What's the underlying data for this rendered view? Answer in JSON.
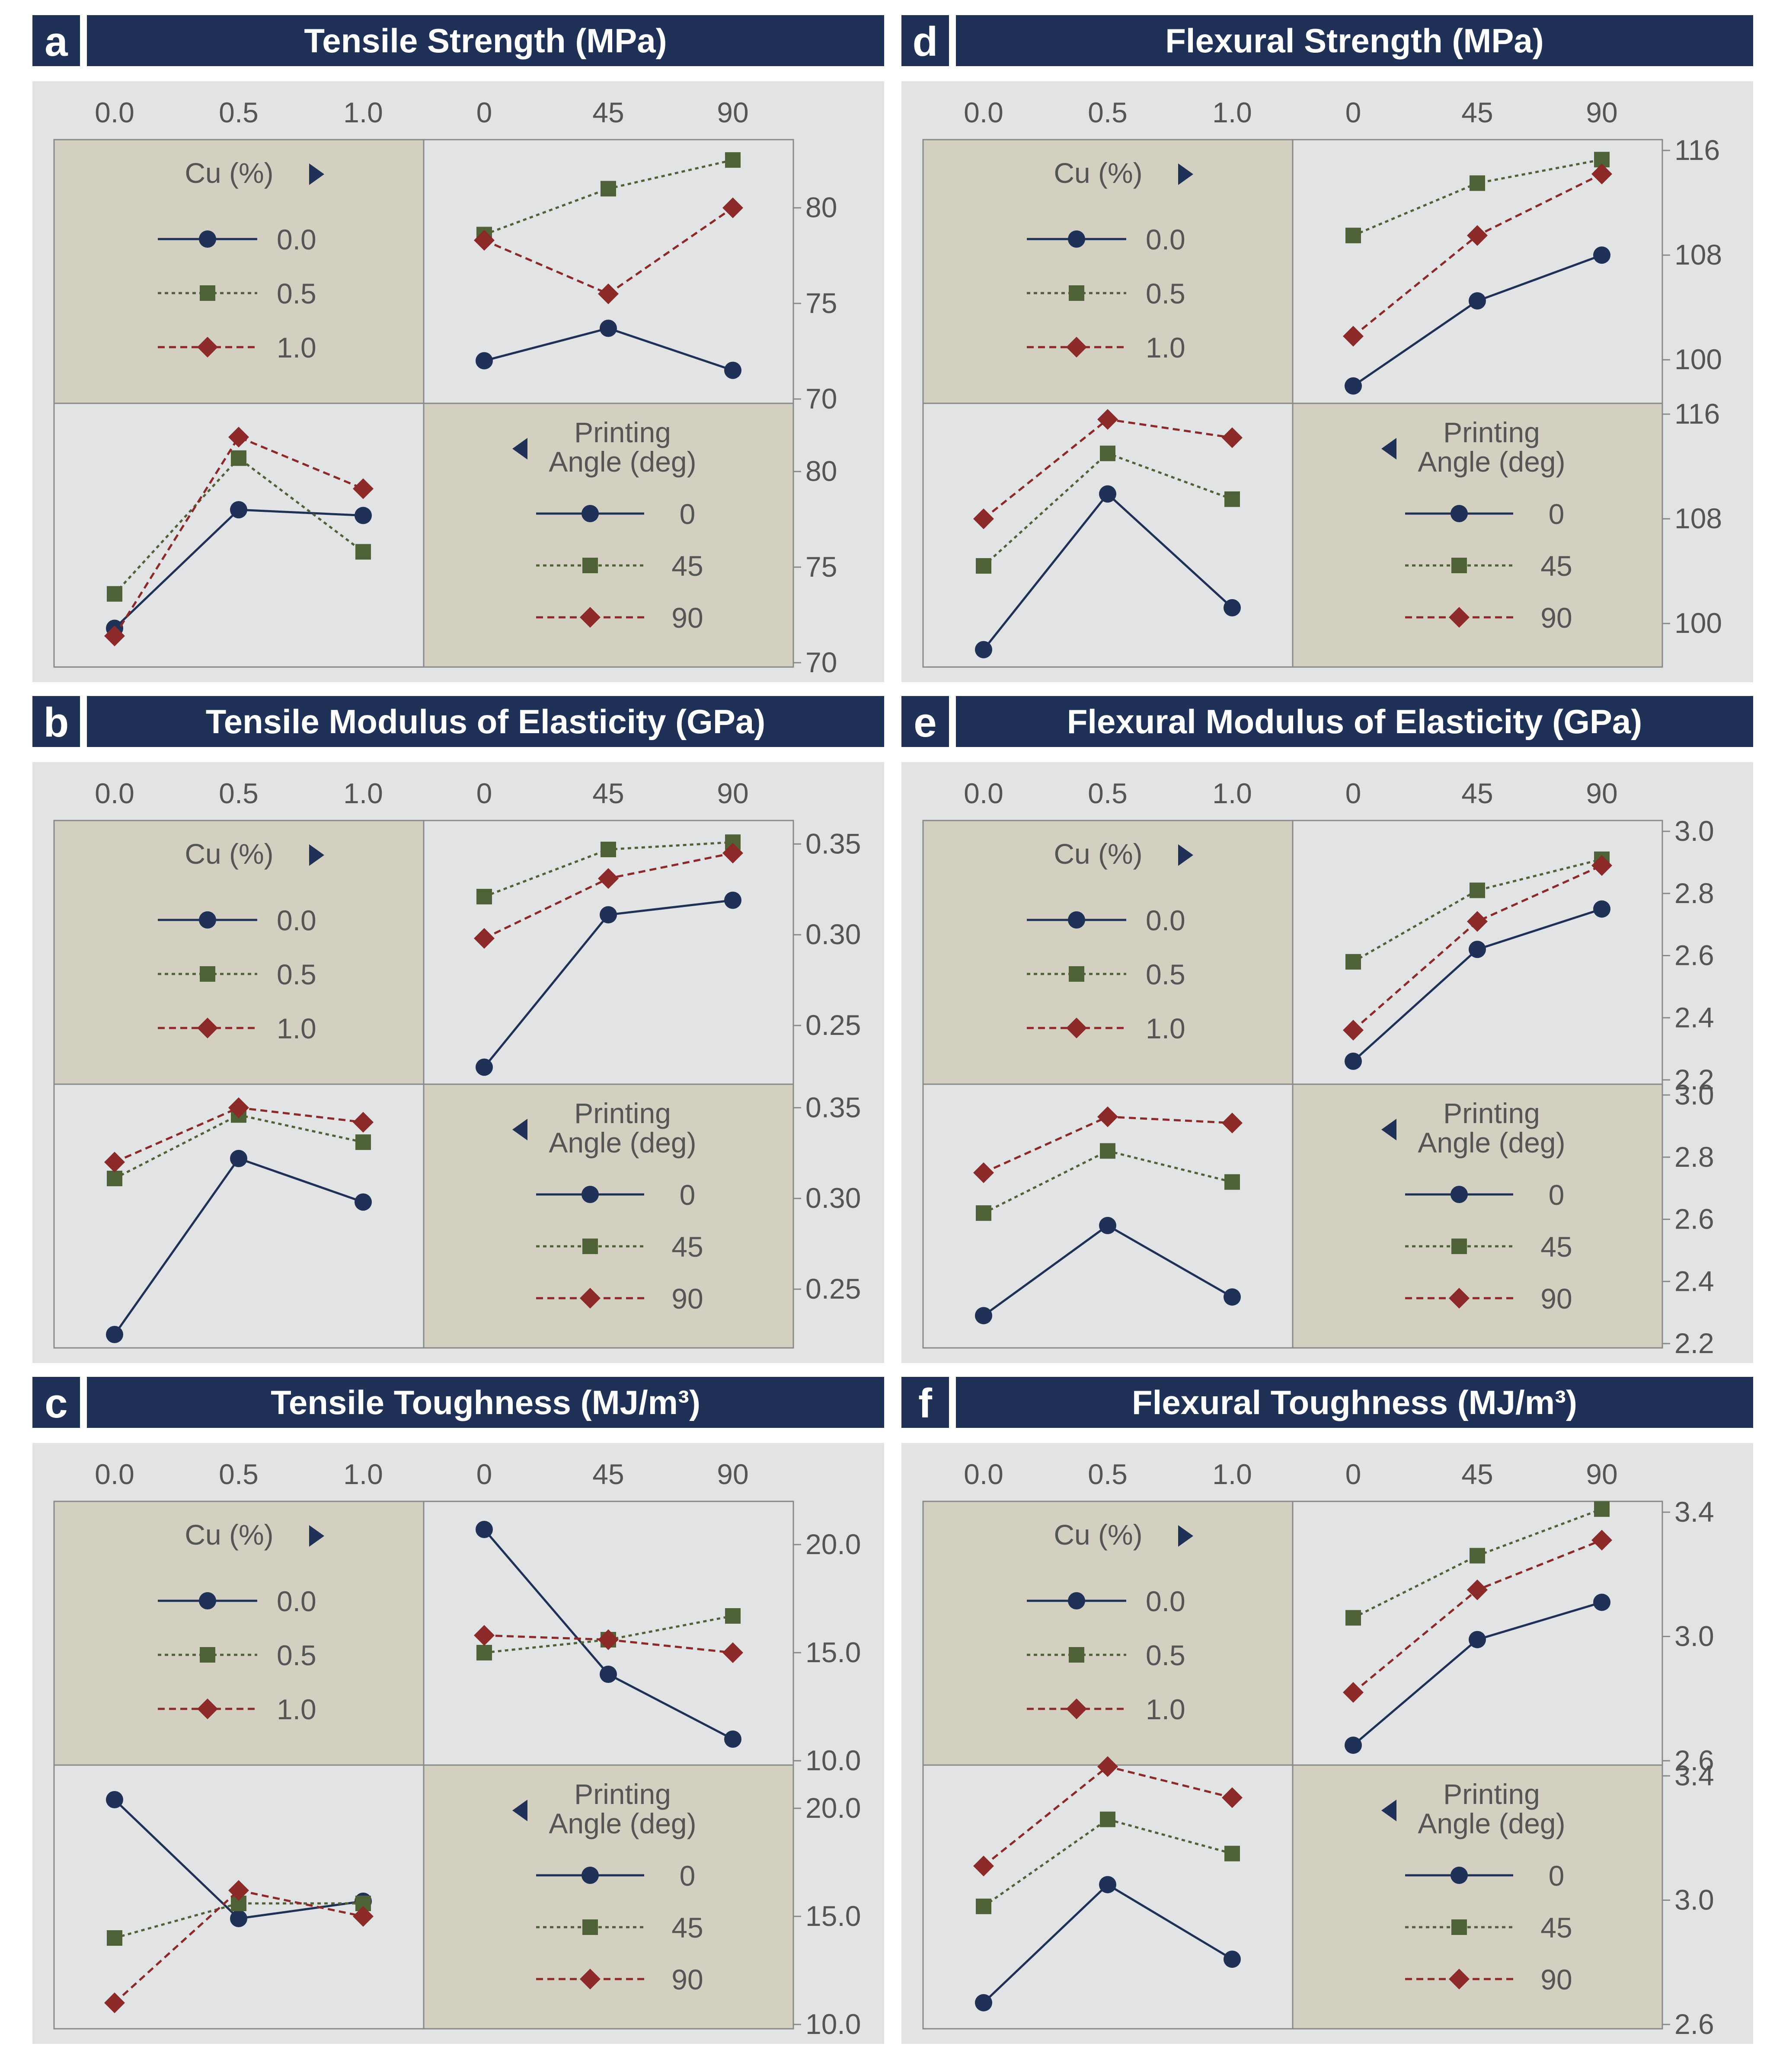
{
  "colors": {
    "title_bar": "#1f3157",
    "panel_bg": "#e2e3e5",
    "legend_bg": "#d3cfc1",
    "series_1": "#1f3157",
    "series_2": "#4f6136",
    "series_3": "#8c2a2a",
    "tick_text": "#555555"
  },
  "legend_cu": {
    "title": "Cu (%)",
    "items": [
      "0.0",
      "0.5",
      "1.0"
    ]
  },
  "legend_angle": {
    "title_line1": "Printing",
    "title_line2": "Angle (deg)",
    "items": [
      "0",
      "45",
      "90"
    ]
  },
  "chart_data": [
    {
      "type": "line",
      "letter": "a",
      "title": "Tensile Strength (MPa)",
      "cu_ticks": [
        "0.0",
        "0.5",
        "1.0"
      ],
      "angle_ticks": [
        "0",
        "45",
        "90"
      ],
      "ylim": [
        70,
        83
      ],
      "yticks": [
        "70",
        "75",
        "80"
      ],
      "cu_series": [
        {
          "name": "0.0",
          "values": [
            72.0,
            73.7,
            71.5
          ]
        },
        {
          "name": "0.5",
          "values": [
            78.6,
            81.0,
            82.5
          ]
        },
        {
          "name": "1.0",
          "values": [
            78.3,
            75.5,
            80.0
          ]
        }
      ],
      "angle_series": [
        {
          "name": "0",
          "values": [
            71.8,
            78.0,
            77.7
          ]
        },
        {
          "name": "45",
          "values": [
            73.6,
            80.7,
            75.8
          ]
        },
        {
          "name": "90",
          "values": [
            71.4,
            81.8,
            79.1
          ]
        }
      ]
    },
    {
      "type": "line",
      "letter": "b",
      "title": "Tensile Modulus of Elasticity (GPa)",
      "cu_ticks": [
        "0.0",
        "0.5",
        "1.0"
      ],
      "angle_ticks": [
        "0",
        "45",
        "90"
      ],
      "ylim": [
        0.22,
        0.357
      ],
      "yticks": [
        "0.25",
        "0.30",
        "0.35"
      ],
      "cu_series": [
        {
          "name": "0.0",
          "values": [
            0.227,
            0.311,
            0.319
          ]
        },
        {
          "name": "0.5",
          "values": [
            0.321,
            0.347,
            0.351
          ]
        },
        {
          "name": "1.0",
          "values": [
            0.298,
            0.331,
            0.345
          ]
        }
      ],
      "angle_series": [
        {
          "name": "0",
          "values": [
            0.225,
            0.322,
            0.298
          ]
        },
        {
          "name": "45",
          "values": [
            0.311,
            0.346,
            0.331
          ]
        },
        {
          "name": "90",
          "values": [
            0.32,
            0.35,
            0.342
          ]
        }
      ]
    },
    {
      "type": "line",
      "letter": "c",
      "title": "Tensile Toughness (MJ/m³)",
      "cu_ticks": [
        "0.0",
        "0.5",
        "1.0"
      ],
      "angle_ticks": [
        "0",
        "45",
        "90"
      ],
      "ylim": [
        10,
        21.5
      ],
      "yticks": [
        "10.0",
        "15.0",
        "20.0"
      ],
      "cu_series": [
        {
          "name": "0.0",
          "values": [
            20.7,
            14.0,
            11.0
          ]
        },
        {
          "name": "0.5",
          "values": [
            15.0,
            15.6,
            16.7
          ]
        },
        {
          "name": "1.0",
          "values": [
            15.8,
            15.6,
            15.0
          ]
        }
      ],
      "angle_series": [
        {
          "name": "0",
          "values": [
            20.4,
            14.9,
            15.7
          ]
        },
        {
          "name": "45",
          "values": [
            14.0,
            15.6,
            15.6
          ]
        },
        {
          "name": "90",
          "values": [
            11.0,
            16.2,
            15.0
          ]
        }
      ]
    },
    {
      "type": "line",
      "letter": "d",
      "title": "Flexural Strength (MPa)",
      "cu_ticks": [
        "0.0",
        "0.5",
        "1.0"
      ],
      "angle_ticks": [
        "0",
        "45",
        "90"
      ],
      "ylim": [
        97,
        116
      ],
      "yticks": [
        "100",
        "108",
        "116"
      ],
      "cu_series": [
        {
          "name": "0.0",
          "values": [
            98.0,
            104.5,
            108.0
          ]
        },
        {
          "name": "0.5",
          "values": [
            109.5,
            113.5,
            115.3
          ]
        },
        {
          "name": "1.0",
          "values": [
            101.8,
            109.5,
            114.2
          ]
        }
      ],
      "angle_series": [
        {
          "name": "0",
          "values": [
            98.0,
            109.9,
            101.2
          ]
        },
        {
          "name": "45",
          "values": [
            104.4,
            113.0,
            109.5
          ]
        },
        {
          "name": "90",
          "values": [
            108.0,
            115.6,
            114.2
          ]
        }
      ]
    },
    {
      "type": "line",
      "letter": "e",
      "title": "Flexural Modulus of Elasticity (GPa)",
      "cu_ticks": [
        "0.0",
        "0.5",
        "1.0"
      ],
      "angle_ticks": [
        "0",
        "45",
        "90"
      ],
      "ylim": [
        2.2,
        3.0
      ],
      "yticks": [
        "2.2",
        "2.4",
        "2.6",
        "2.8",
        "3.0"
      ],
      "cu_series": [
        {
          "name": "0.0",
          "values": [
            2.26,
            2.62,
            2.75
          ]
        },
        {
          "name": "0.5",
          "values": [
            2.58,
            2.81,
            2.91
          ]
        },
        {
          "name": "1.0",
          "values": [
            2.36,
            2.71,
            2.89
          ]
        }
      ],
      "angle_series": [
        {
          "name": "0",
          "values": [
            2.29,
            2.58,
            2.35
          ]
        },
        {
          "name": "45",
          "values": [
            2.62,
            2.82,
            2.72
          ]
        },
        {
          "name": "90",
          "values": [
            2.75,
            2.93,
            2.91
          ]
        }
      ]
    },
    {
      "type": "line",
      "letter": "f",
      "title": "Flexural Toughness (MJ/m³)",
      "cu_ticks": [
        "0.0",
        "0.5",
        "1.0"
      ],
      "angle_ticks": [
        "0",
        "45",
        "90"
      ],
      "ylim": [
        2.6,
        3.4
      ],
      "yticks": [
        "2.6",
        "3.0",
        "3.4"
      ],
      "cu_series": [
        {
          "name": "0.0",
          "values": [
            2.65,
            2.99,
            3.11
          ]
        },
        {
          "name": "0.5",
          "values": [
            3.06,
            3.26,
            3.41
          ]
        },
        {
          "name": "1.0",
          "values": [
            2.82,
            3.15,
            3.31
          ]
        }
      ],
      "angle_series": [
        {
          "name": "0",
          "values": [
            2.67,
            3.05,
            2.81
          ]
        },
        {
          "name": "45",
          "values": [
            2.98,
            3.26,
            3.15
          ]
        },
        {
          "name": "90",
          "values": [
            3.11,
            3.43,
            3.33
          ]
        }
      ]
    }
  ]
}
